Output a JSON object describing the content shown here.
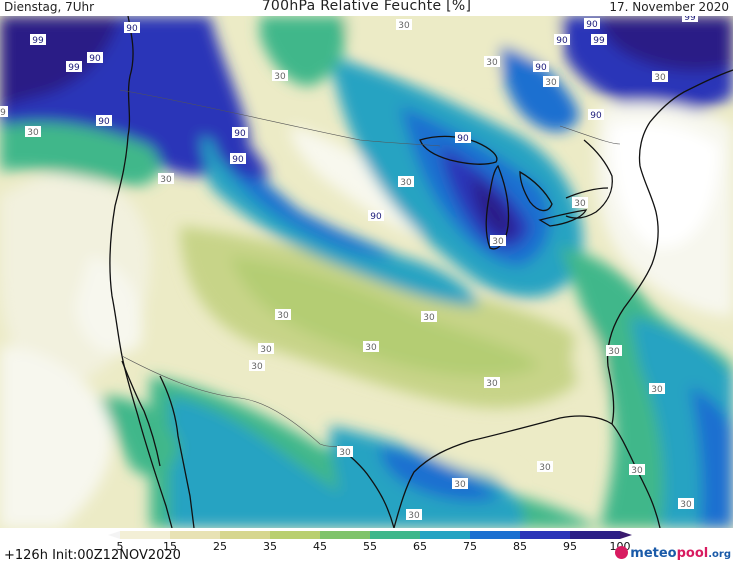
{
  "header": {
    "left": "Dienstag, 7Uhr",
    "title": "700hPa Relative Feuchte [%]",
    "right": "17. November 2020"
  },
  "footer": {
    "init": "+126h  Init:00Z12NOV2020",
    "logo_main": "meteo",
    "logo_accent": "pool",
    "logo_suffix": ".org"
  },
  "colorbar": {
    "labels": [
      "5",
      "15",
      "25",
      "35",
      "45",
      "55",
      "65",
      "75",
      "85",
      "95",
      "100"
    ],
    "colors": [
      "#f4f4f4",
      "#f3efd6",
      "#e8e2b4",
      "#d6d68f",
      "#b9cf6f",
      "#7fc36b",
      "#3fb78a",
      "#25a3c2",
      "#1b6fd0",
      "#2a34b8",
      "#2b1f86",
      "#3a1a6e"
    ]
  },
  "map": {
    "contour_labels": [
      {
        "text": "99"
      },
      {
        "text": "99"
      },
      {
        "text": "90"
      },
      {
        "text": "90"
      },
      {
        "text": "30"
      },
      {
        "text": "30"
      },
      {
        "text": "30"
      },
      {
        "text": "90"
      },
      {
        "text": "90"
      },
      {
        "text": "30"
      },
      {
        "text": "90"
      },
      {
        "text": "30"
      },
      {
        "text": "90"
      },
      {
        "text": "30"
      },
      {
        "text": "90"
      },
      {
        "text": "90"
      },
      {
        "text": "30"
      },
      {
        "text": "90"
      },
      {
        "text": "30"
      },
      {
        "text": "30"
      },
      {
        "text": "30"
      },
      {
        "text": "30"
      },
      {
        "text": "30"
      },
      {
        "text": "30"
      },
      {
        "text": "30"
      },
      {
        "text": "30"
      },
      {
        "text": "30"
      },
      {
        "text": "30"
      },
      {
        "text": "30"
      },
      {
        "text": "30"
      },
      {
        "text": "30"
      },
      {
        "text": "30"
      },
      {
        "text": "30"
      },
      {
        "text": "30"
      },
      {
        "text": "99"
      },
      {
        "text": "99"
      },
      {
        "text": "90"
      },
      {
        "text": "90"
      },
      {
        "text": "9"
      },
      {
        "text": "30"
      }
    ]
  }
}
